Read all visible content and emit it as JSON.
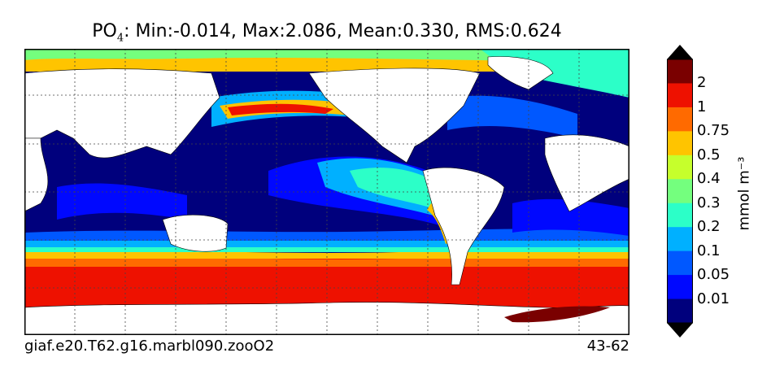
{
  "title": {
    "var": "PO",
    "sub": "4",
    "stats": ": Min:-0.014, Max:2.086, Mean:0.330, RMS:0.624"
  },
  "footer": {
    "case": "giaf.e20.T62.g16.marbl090.zooO2",
    "years": "43-62"
  },
  "colorbar": {
    "units": "mmol m⁻³",
    "labels": [
      "2",
      "1",
      "0.75",
      "0.5",
      "0.4",
      "0.3",
      "0.2",
      "0.1",
      "0.05",
      "0.01"
    ],
    "colors": [
      "#7a0000",
      "#ee1100",
      "#ff6a00",
      "#ffc400",
      "#c6ff2c",
      "#74ff7e",
      "#2cffc8",
      "#00b0ff",
      "#0058ff",
      "#0008ff",
      "#00007d"
    ],
    "extend_colors": {
      "top": "#000000",
      "bottom": "#000000"
    }
  },
  "map": {
    "projection": "plate-carree",
    "grid": "dotted",
    "land_color": "#ffffff"
  }
}
